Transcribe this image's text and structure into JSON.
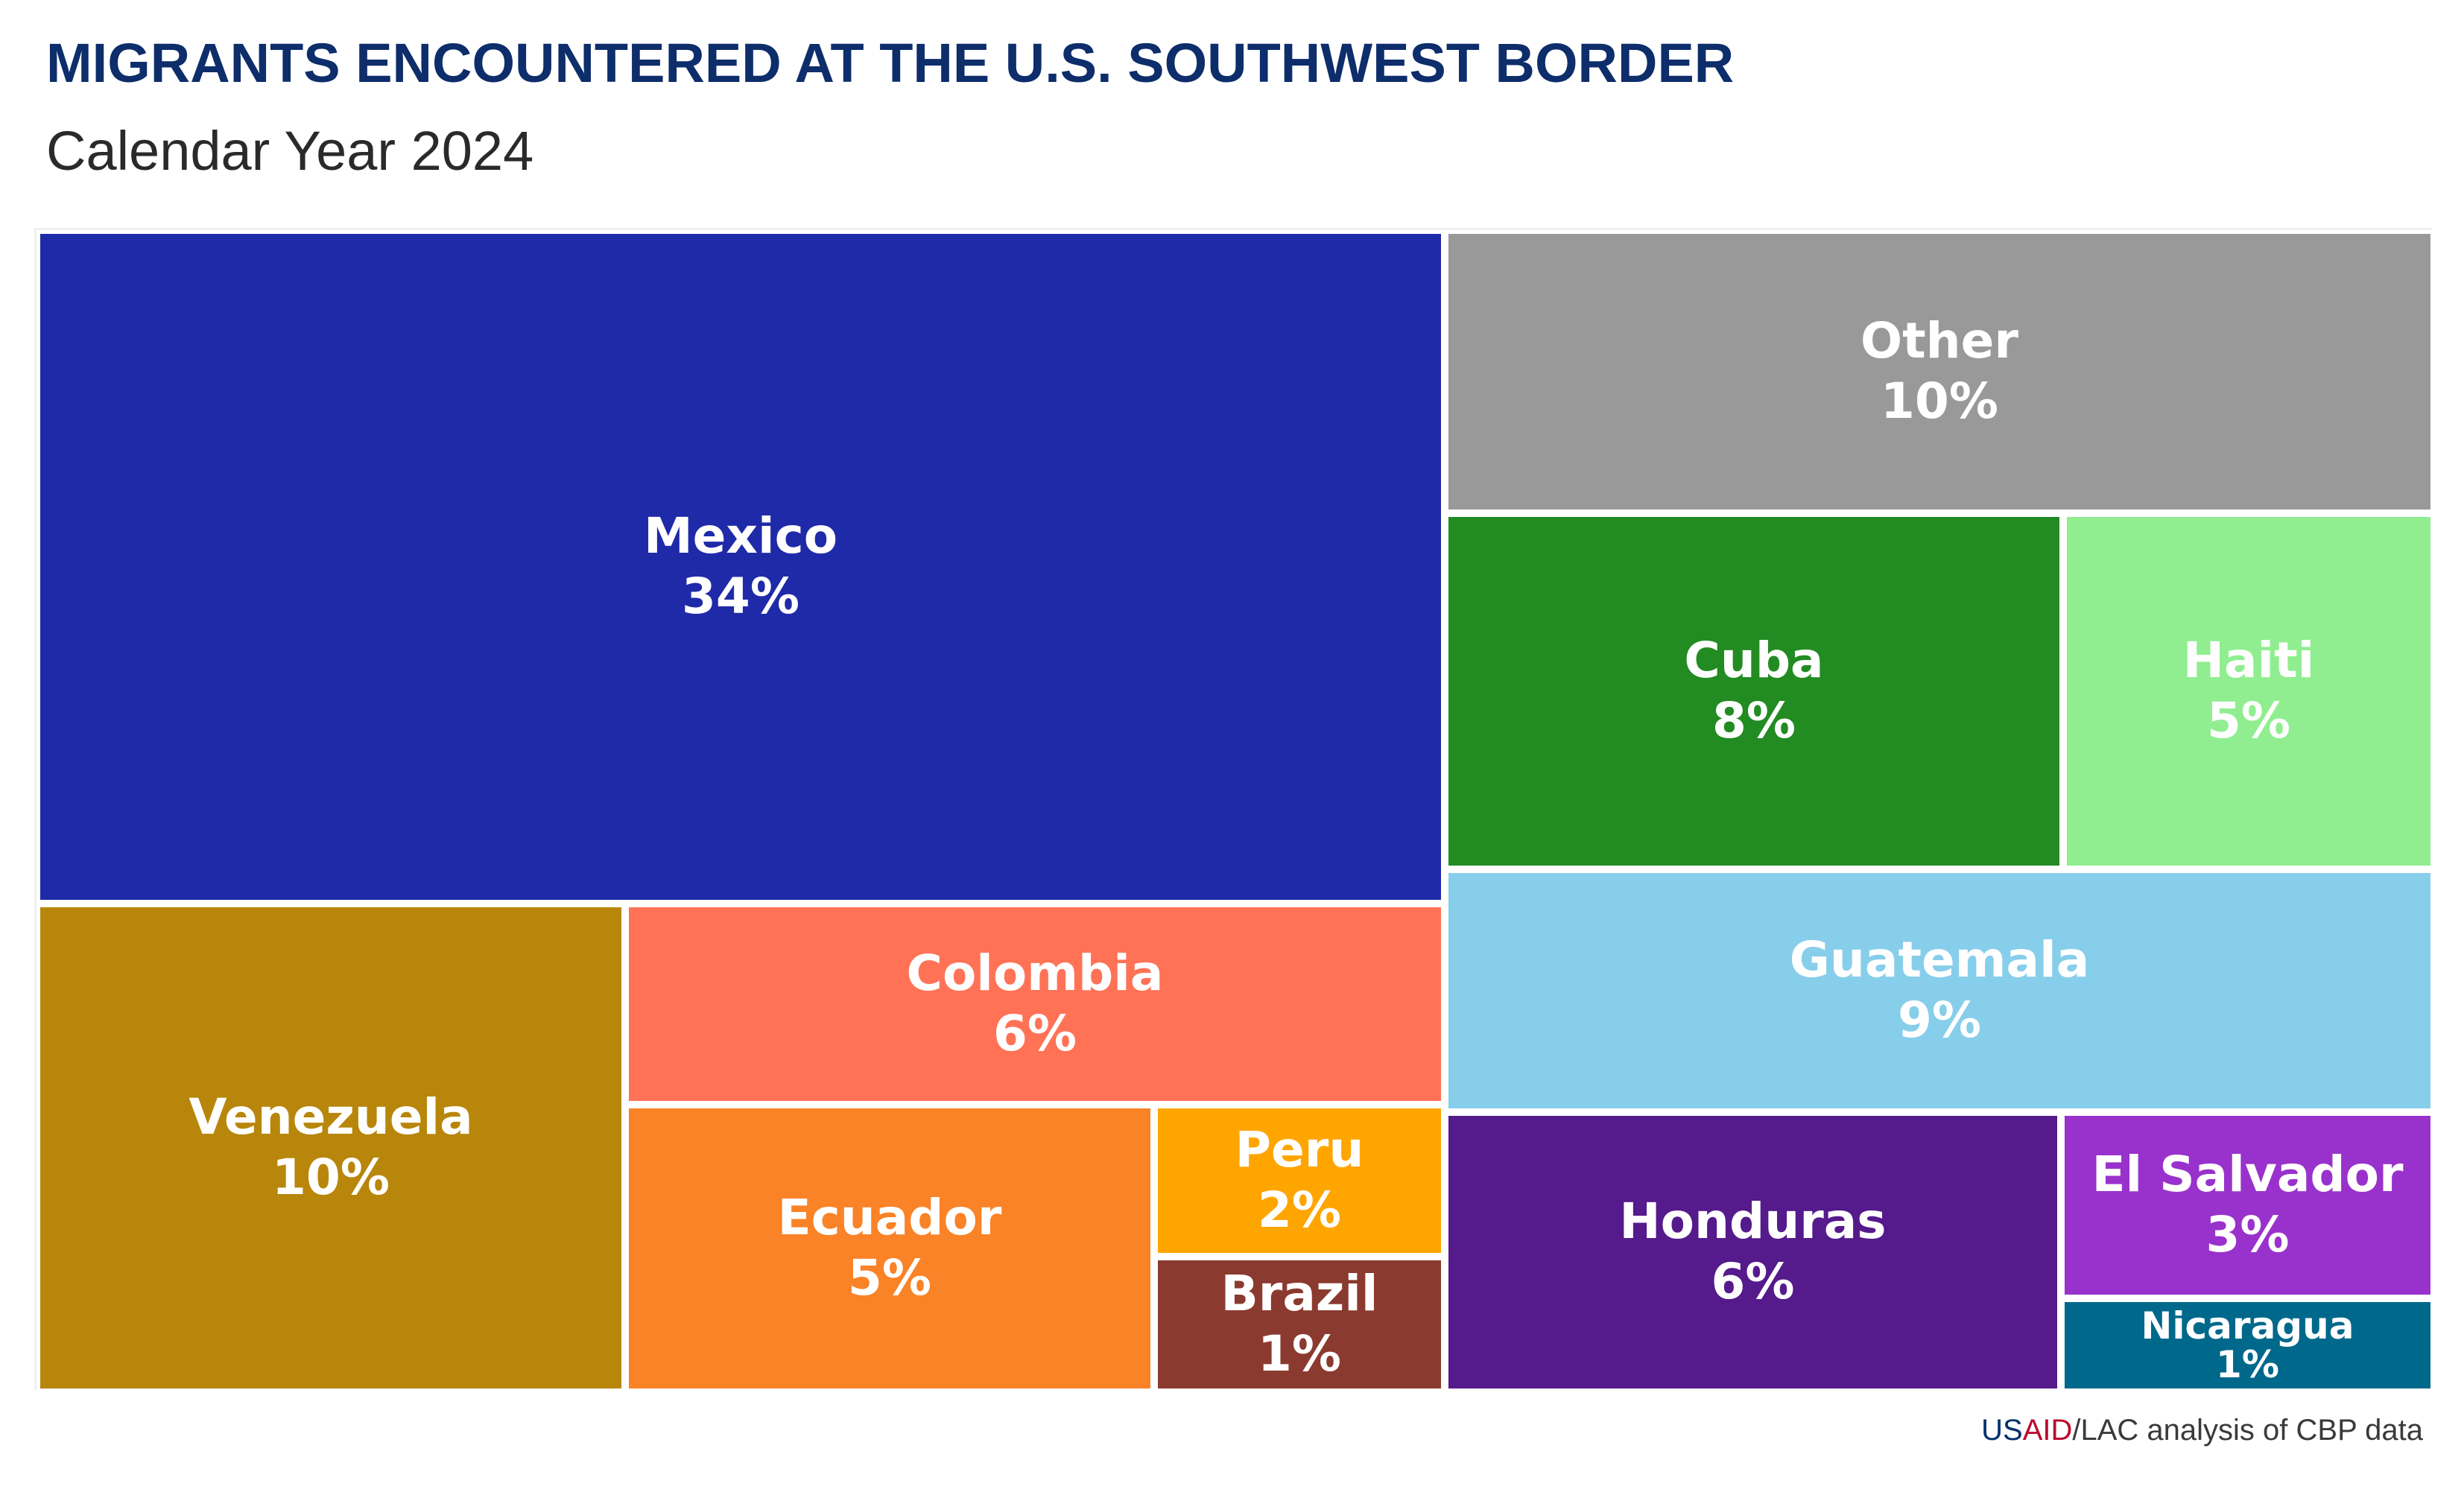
{
  "chart_data": {
    "type": "treemap",
    "title": "MIGRANTS ENCOUNTERED AT THE U.S. SOUTHWEST BORDER",
    "subtitle": "Calendar Year 2024",
    "unit": "%",
    "items": [
      {
        "label": "Mexico",
        "value": 34,
        "value_label": "34%",
        "color": "#1f2aa8"
      },
      {
        "label": "Venezuela",
        "value": 10,
        "value_label": "10%",
        "color": "#b8860b"
      },
      {
        "label": "Colombia",
        "value": 6,
        "value_label": "6%",
        "color": "#ff7256"
      },
      {
        "label": "Ecuador",
        "value": 5,
        "value_label": "5%",
        "color": "#fa8227"
      },
      {
        "label": "Peru",
        "value": 2,
        "value_label": "2%",
        "color": "#ffa500"
      },
      {
        "label": "Brazil",
        "value": 1,
        "value_label": "1%",
        "color": "#8b3a2f"
      },
      {
        "label": "Other",
        "value": 10,
        "value_label": "10%",
        "color": "#999999"
      },
      {
        "label": "Cuba",
        "value": 8,
        "value_label": "8%",
        "color": "#228b22"
      },
      {
        "label": "Haiti",
        "value": 5,
        "value_label": "5%",
        "color": "#90ee90"
      },
      {
        "label": "Guatemala",
        "value": 9,
        "value_label": "9%",
        "color": "#87ceeb"
      },
      {
        "label": "Honduras",
        "value": 6,
        "value_label": "6%",
        "color": "#551a8b"
      },
      {
        "label": "El Salvador",
        "value": 3,
        "value_label": "3%",
        "color": "#9932cc"
      },
      {
        "label": "Nicaragua",
        "value": 1,
        "value_label": "1%",
        "color": "#00688b"
      }
    ]
  },
  "source": {
    "accent": "US",
    "accent2": "AID",
    "text": "/LAC analysis of CBP data"
  }
}
